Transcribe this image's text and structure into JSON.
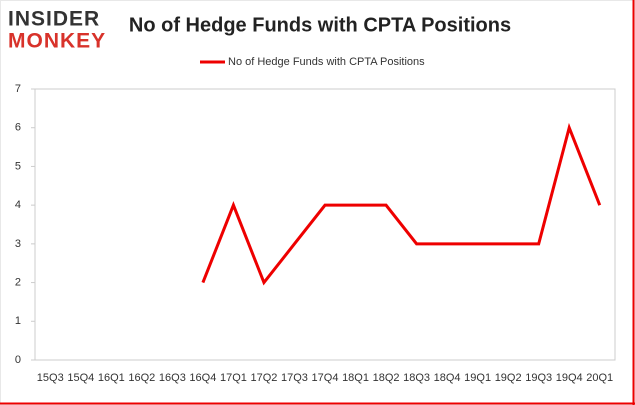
{
  "logo": {
    "line1": "INSIDER",
    "line2": "MONKEY"
  },
  "chart_data": {
    "type": "line",
    "title": "No of Hedge Funds with CPTA Positions",
    "categories": [
      "15Q3",
      "15Q4",
      "16Q1",
      "16Q2",
      "16Q3",
      "16Q4",
      "17Q1",
      "17Q2",
      "17Q3",
      "17Q4",
      "18Q1",
      "18Q2",
      "18Q3",
      "18Q4",
      "19Q1",
      "19Q2",
      "19Q3",
      "19Q4",
      "20Q1"
    ],
    "series": [
      {
        "name": "No of Hedge Funds with CPTA Positions",
        "color": "#ee0000",
        "values": [
          null,
          null,
          null,
          null,
          null,
          2,
          4,
          2,
          3,
          4,
          4,
          4,
          3,
          3,
          3,
          3,
          3,
          6,
          4
        ]
      }
    ],
    "ylim": [
      0,
      7
    ],
    "yticks": [
      0,
      1,
      2,
      3,
      4,
      5,
      6,
      7
    ],
    "legend": "top"
  }
}
